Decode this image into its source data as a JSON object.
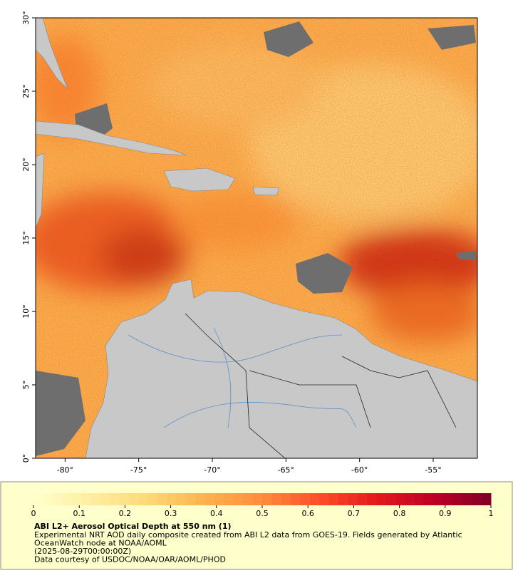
{
  "map": {
    "xlim": [
      -82,
      -52
    ],
    "ylim": [
      0,
      30
    ],
    "xticks": [
      {
        "value": -80,
        "label": "-80°"
      },
      {
        "value": -75,
        "label": "-75°"
      },
      {
        "value": -70,
        "label": "-70°"
      },
      {
        "value": -65,
        "label": "-65°"
      },
      {
        "value": -60,
        "label": "-60°"
      },
      {
        "value": -55,
        "label": "-55°"
      }
    ],
    "yticks": [
      {
        "value": 0,
        "label": "0°"
      },
      {
        "value": 5,
        "label": "5°"
      },
      {
        "value": 10,
        "label": "10°"
      },
      {
        "value": 15,
        "label": "15°"
      },
      {
        "value": 20,
        "label": "20°"
      },
      {
        "value": 25,
        "label": "25°"
      },
      {
        "value": 30,
        "label": "30°"
      }
    ]
  },
  "colorbar": {
    "range": [
      0,
      1
    ],
    "ticks": [
      0,
      0.1,
      0.2,
      0.3,
      0.4,
      0.5,
      0.6,
      0.7,
      0.8,
      0.9,
      1
    ],
    "colormap": [
      "#ffffcc",
      "#ffeda0",
      "#fed976",
      "#feb24c",
      "#fd8d3c",
      "#fc4e2a",
      "#e31a1c",
      "#bd0026",
      "#800026"
    ]
  },
  "caption": {
    "title": "ABI L2+ Aerosol Optical Depth at 550 nm (1)",
    "lines": [
      "Experimental NRT AOD daily composite created from ABI L2 data from GOES-19. Fields generated by Atlantic",
      "OceanWatch node at NOAA/AOML",
      "(2025-08-29T00:00:00Z)",
      "Data courtesy of USDOC/NOAA/OAR/AOML/PHOD"
    ]
  }
}
